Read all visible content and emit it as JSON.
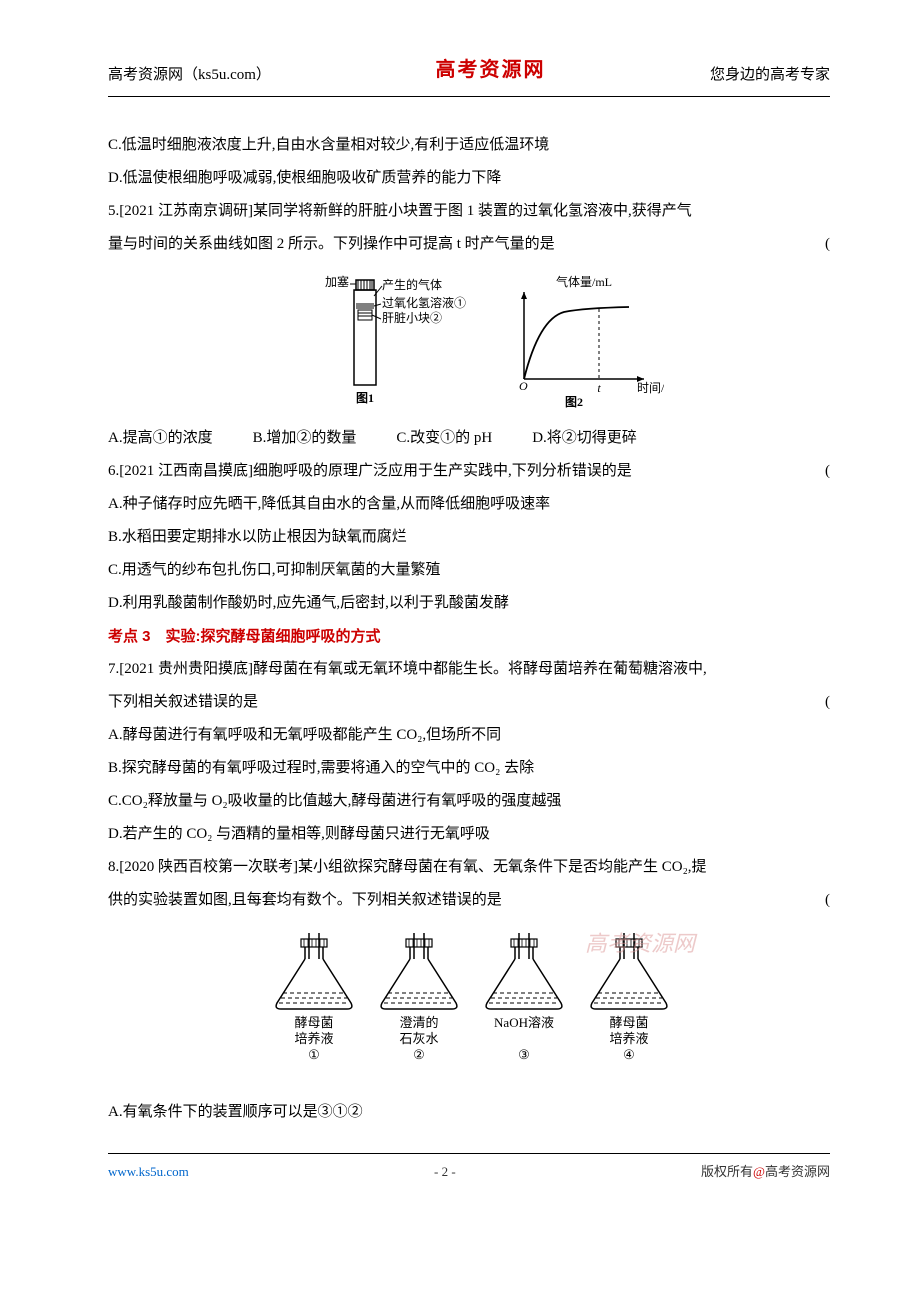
{
  "header": {
    "left": "高考资源网（ks5u.com）",
    "center": "高考资源网",
    "right": "您身边的高考专家"
  },
  "lines": {
    "c_option": "C.低温时细胞液浓度上升,自由水含量相对较少,有利于适应低温环境",
    "d_option": "D.低温使根细胞呼吸减弱,使根细胞吸收矿质营养的能力下降",
    "q5_line1": "5.[2021 江苏南京调研]某同学将新鲜的肝脏小块置于图 1 装置的过氧化氢溶液中,获得产气",
    "q5_line2": "量与时间的关系曲线如图 2 所示。下列操作中可提高 t 时产气量的是",
    "q5_optA": "A.提高①的浓度",
    "q5_optB": "B.增加②的数量",
    "q5_optC": "C.改变①的 pH",
    "q5_optD": "D.将②切得更碎",
    "q6_stem": "6.[2021 江西南昌摸底]细胞呼吸的原理广泛应用于生产实践中,下列分析错误的是",
    "q6_a": "A.种子储存时应先晒干,降低其自由水的含量,从而降低细胞呼吸速率",
    "q6_b": "B.水稻田要定期排水以防止根因为缺氧而腐烂",
    "q6_c": "C.用透气的纱布包扎伤口,可抑制厌氧菌的大量繁殖",
    "q6_d": "D.利用乳酸菌制作酸奶时,应先通气,后密封,以利于乳酸菌发酵",
    "kaodian3": "考点 3　实验:探究酵母菌细胞呼吸的方式",
    "q7_line1": "7.[2021 贵州贵阳摸底]酵母菌在有氧或无氧环境中都能生长。将酵母菌培养在葡萄糖溶液中,",
    "q7_line2": "下列相关叙述错误的是",
    "q7_a": "A.酵母菌进行有氧呼吸和无氧呼吸都能产生 CO₂,但场所不同",
    "q7_b": "B.探究酵母菌的有氧呼吸过程时,需要将通入的空气中的 CO₂ 去除",
    "q7_c": "C.CO₂释放量与 O₂吸收量的比值越大,酵母菌进行有氧呼吸的强度越强",
    "q7_d": "D.若产生的 CO₂ 与酒精的量相等,则酵母菌只进行无氧呼吸",
    "q8_line1": "8.[2020 陕西百校第一次联考]某小组欲探究酵母菌在有氧、无氧条件下是否均能产生 CO₂,提",
    "q8_line2": "供的实验装置如图,且每套均有数个。下列相关叙述错误的是",
    "q8_a": "A.有氧条件下的装置顺序可以是③①②"
  },
  "fig1": {
    "labels": {
      "jiase": "加塞",
      "qiti": "产生的气体",
      "h2o2": "过氧化氢溶液①",
      "ganzang": "肝脏小块②",
      "tu1": "图1",
      "ylabel": "气体量/mL",
      "xlabel": "时间/min",
      "t": "t",
      "origin": "O",
      "tu2": "图2"
    },
    "colors": {
      "stroke": "#000000",
      "text": "#000000",
      "bg": "#ffffff"
    }
  },
  "flasks": {
    "labels": [
      "酵母菌\n培养液\n①",
      "澄清的\n石灰水\n②",
      "NaOH溶液\n\n③",
      "酵母菌\n培养液\n④"
    ],
    "colors": {
      "stroke": "#000000",
      "fill": "#ffffff"
    }
  },
  "watermark": "高考资源网",
  "footer": {
    "left": "www.ks5u.com",
    "page": "- 2 -",
    "right_prefix": "版权所有",
    "right_at": "@",
    "right_suffix": "高考资源网"
  }
}
